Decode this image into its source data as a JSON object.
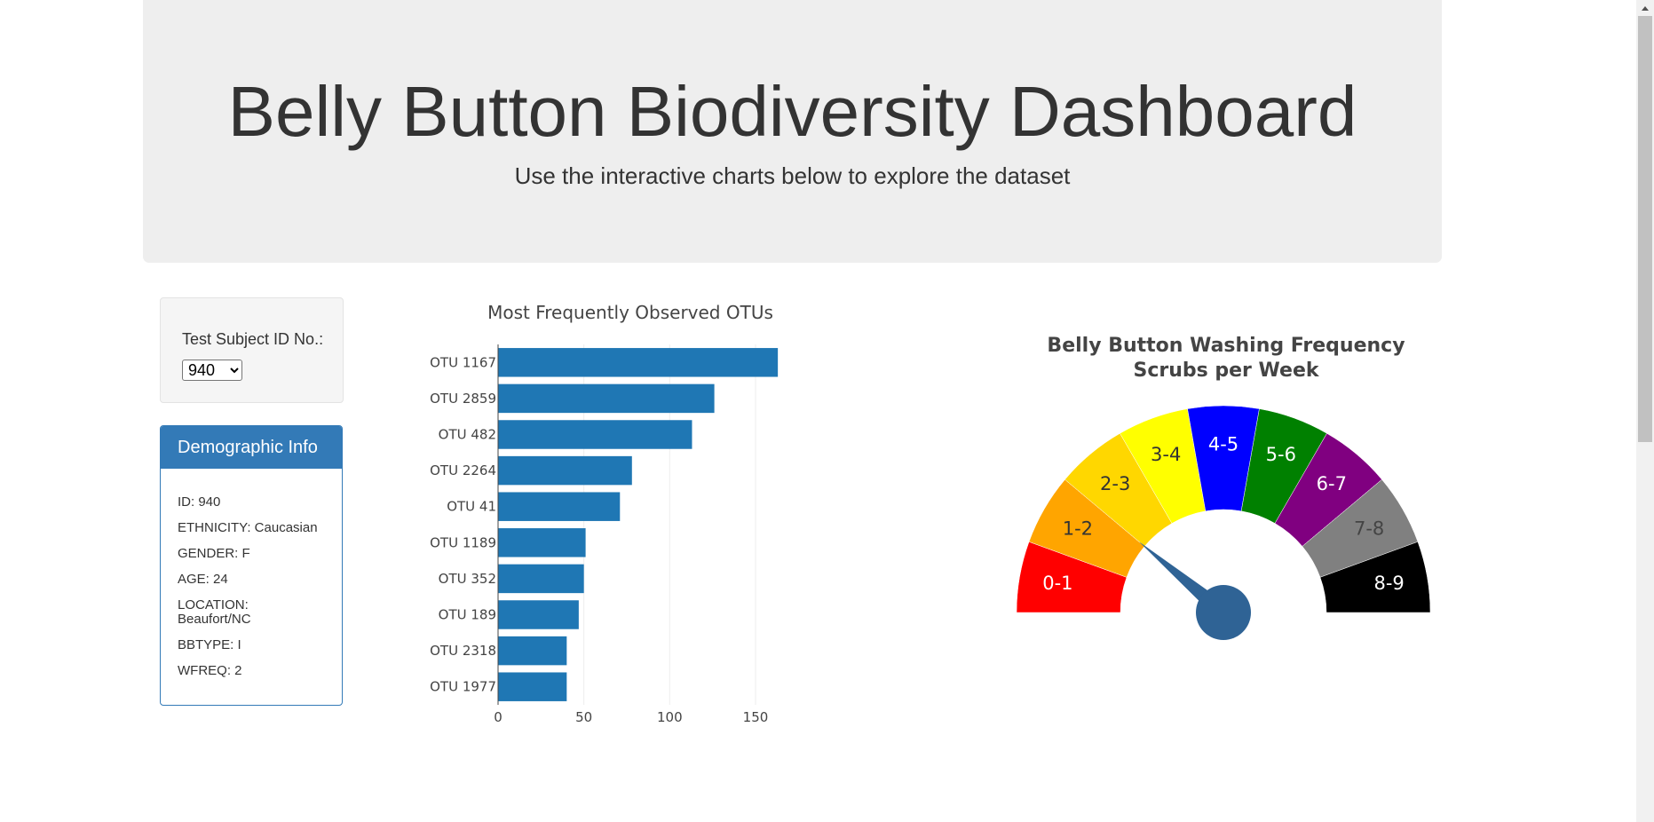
{
  "header": {
    "title": "Belly Button Biodiversity Dashboard",
    "subtitle": "Use the interactive charts below to explore the dataset"
  },
  "selector": {
    "label": "Test Subject ID No.:",
    "selected": "940"
  },
  "demographics": {
    "heading": "Demographic Info",
    "rows": [
      "ID: 940",
      "ETHNICITY: Caucasian",
      "GENDER: F",
      "AGE: 24",
      "LOCATION: Beaufort/NC",
      "BBTYPE: I",
      "WFREQ: 2"
    ]
  },
  "chart_data": [
    {
      "type": "bar",
      "orientation": "horizontal",
      "title": "Most Frequently Observed OTUs",
      "categories": [
        "OTU 1167",
        "OTU 2859",
        "OTU 482",
        "OTU 2264",
        "OTU 41",
        "OTU 1189",
        "OTU 352",
        "OTU 189",
        "OTU 2318",
        "OTU 1977"
      ],
      "values": [
        163,
        126,
        113,
        78,
        71,
        51,
        50,
        47,
        40,
        40
      ],
      "xticks": [
        0,
        50,
        100,
        150
      ],
      "xlim": [
        0,
        165
      ],
      "grid": true,
      "color": "#1f77b4"
    },
    {
      "type": "gauge",
      "title": "Belly Button Washing Frequency",
      "subtitle": "Scrubs per Week",
      "segments": [
        "0-1",
        "1-2",
        "2-3",
        "3-4",
        "4-5",
        "5-6",
        "6-7",
        "7-8",
        "8-9"
      ],
      "colors": [
        "#ff0000",
        "#ffa500",
        "#ffd700",
        "#ffff00",
        "#0000ff",
        "#008000",
        "#800080",
        "#808080",
        "#000000"
      ],
      "label_colors": [
        "#ffffff",
        "#333333",
        "#333333",
        "#333333",
        "#ffffff",
        "#ffffff",
        "#ffffff",
        "#444444",
        "#ffffff"
      ],
      "range": [
        0,
        9
      ],
      "value": 2,
      "needle_color": "#2f6395"
    }
  ]
}
